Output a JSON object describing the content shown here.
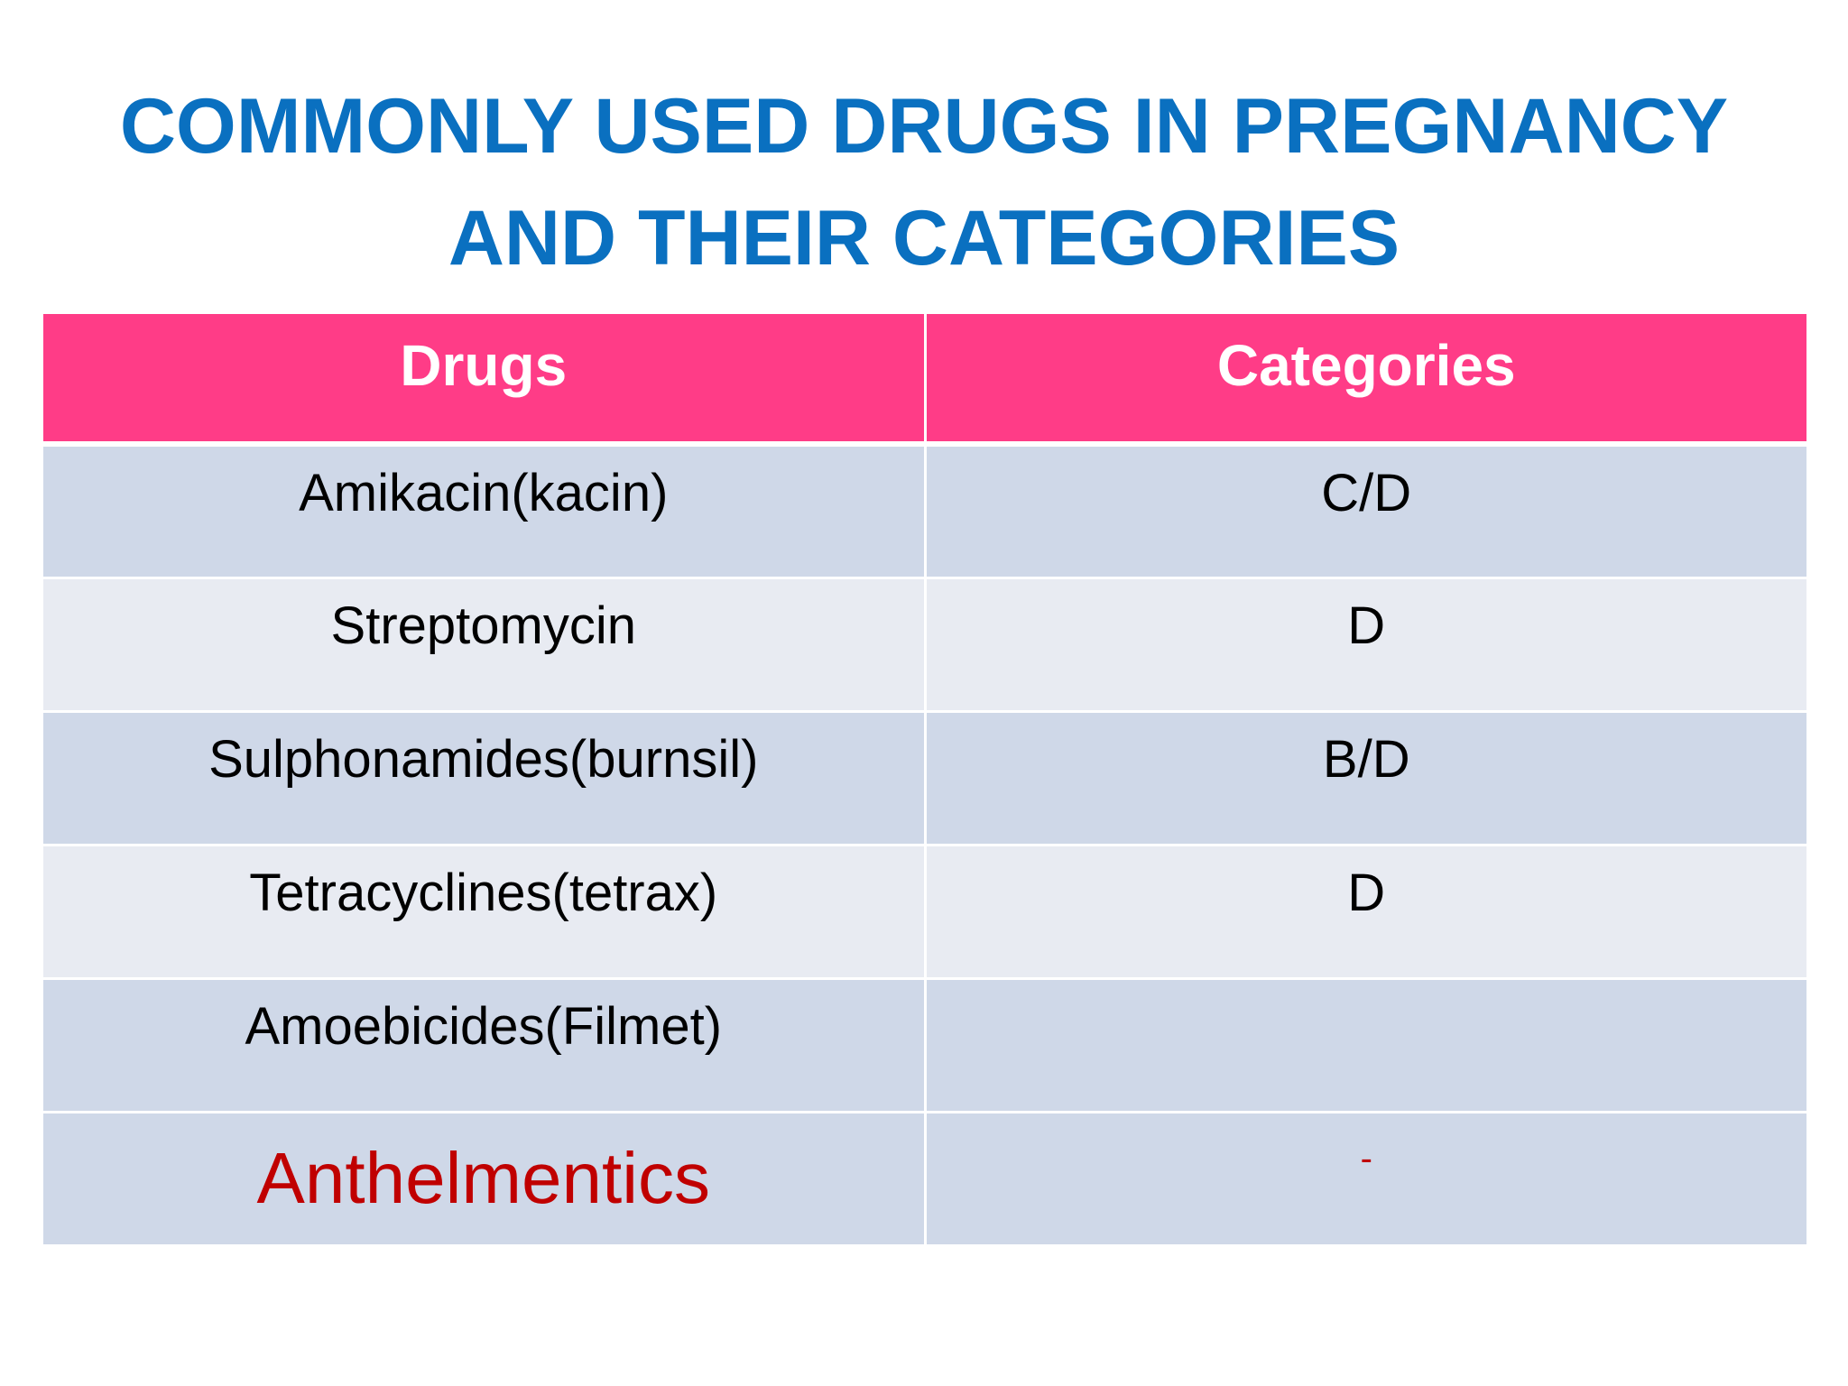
{
  "title": {
    "line1": "COMMONLY USED DRUGS IN PREGNANCY",
    "line2": "AND THEIR CATEGORIES"
  },
  "table": {
    "headers": [
      "Drugs",
      "Categories"
    ],
    "rows": [
      {
        "drug": "Amikacin(kacin)",
        "category": "C/D"
      },
      {
        "drug": "Streptomycin",
        "category": "D"
      },
      {
        "drug": "Sulphonamides(burnsil)",
        "category": "B/D"
      },
      {
        "drug": "Tetracyclines(tetrax)",
        "category": "D"
      },
      {
        "drug": "Amoebicides(Filmet)",
        "category": ""
      },
      {
        "drug": "Anthelmentics",
        "category": "-"
      }
    ]
  },
  "colors": {
    "title": "#0a70c0",
    "header_bg": "#ff3c87",
    "row_dark": "#cfd8e8",
    "row_light": "#e8ebf2",
    "highlight_text": "#c00000"
  }
}
